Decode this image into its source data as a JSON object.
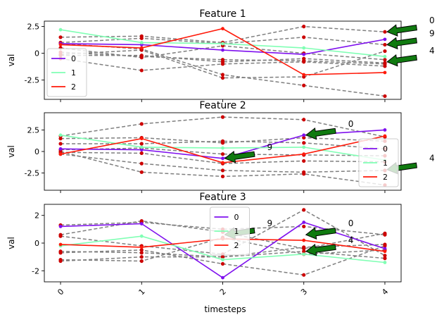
{
  "figure": {
    "xlabel": "timesteps"
  },
  "chart_data": [
    {
      "type": "line",
      "title": "Feature 1",
      "ylabel": "val",
      "x": [
        0,
        1,
        2,
        3,
        4
      ],
      "ylim": [
        -4.3,
        3.0
      ],
      "yticks": [
        -2.5,
        0.0,
        2.5
      ],
      "legend": "lower-left",
      "series": [
        {
          "name": "0",
          "color": "#7f10ee",
          "values": [
            0.9,
            0.8,
            0.3,
            -0.1,
            1.3
          ]
        },
        {
          "name": "1",
          "color": "#80ffb4",
          "values": [
            2.2,
            1.0,
            0.9,
            0.5,
            -0.3
          ]
        },
        {
          "name": "2",
          "color": "#ff1a0a",
          "values": [
            0.8,
            0.5,
            2.3,
            -2.0,
            -1.8
          ]
        }
      ],
      "background": [
        [
          1.5,
          1.6,
          1.0,
          2.5,
          2.0
        ],
        [
          1.0,
          1.4,
          0.9,
          1.5,
          0.8
        ],
        [
          0.5,
          -0.4,
          0.7,
          0.0,
          -0.6
        ],
        [
          0.1,
          -0.3,
          -0.6,
          -0.7,
          -1.0
        ],
        [
          -0.2,
          -0.2,
          -0.8,
          -0.5,
          -0.9
        ],
        [
          -0.5,
          -1.6,
          -1.0,
          -0.8,
          -1.2
        ],
        [
          0.9,
          0.4,
          -2.0,
          -3.0,
          -4.0
        ],
        [
          -0.1,
          0.3,
          -2.3,
          -2.2,
          0.2
        ]
      ],
      "annotations": [
        {
          "label": "0",
          "x": 4,
          "y": 2.0
        },
        {
          "label": "9",
          "x": 4,
          "y": 0.8
        },
        {
          "label": "4",
          "x": 4,
          "y": -0.8
        }
      ]
    },
    {
      "type": "line",
      "title": "Feature 2",
      "ylabel": "val",
      "x": [
        0,
        1,
        2,
        3,
        4
      ],
      "ylim": [
        -4.5,
        4.5
      ],
      "yticks": [
        -2.5,
        0.0,
        2.5
      ],
      "legend": "right",
      "series": [
        {
          "name": "0",
          "color": "#7f10ee",
          "values": [
            0.3,
            0.2,
            -0.8,
            1.9,
            2.5
          ]
        },
        {
          "name": "1",
          "color": "#80ffb4",
          "values": [
            1.9,
            0.5,
            0.4,
            0.5,
            -1.0
          ]
        },
        {
          "name": "2",
          "color": "#ff1a0a",
          "values": [
            -0.3,
            1.5,
            -1.3,
            -0.3,
            1.8
          ]
        }
      ],
      "background": [
        [
          1.8,
          3.2,
          4.0,
          3.7,
          1.7
        ],
        [
          1.5,
          1.6,
          1.0,
          1.6,
          1.2
        ],
        [
          0.9,
          0.9,
          1.2,
          1.0,
          0.3
        ],
        [
          0.2,
          0.4,
          -0.3,
          -0.4,
          -0.5
        ],
        [
          -0.1,
          -0.2,
          -1.4,
          -1.1,
          -1.2
        ],
        [
          -0.3,
          -1.4,
          -2.2,
          -2.4,
          -2.2
        ],
        [
          0.0,
          -2.4,
          -2.9,
          -2.6,
          -3.9
        ]
      ],
      "annotations": [
        {
          "label": "0",
          "x": 3,
          "y": 1.9
        },
        {
          "label": "9",
          "x": 2,
          "y": -0.8
        },
        {
          "label": "4",
          "x": 4,
          "y": -2.1
        }
      ]
    },
    {
      "type": "line",
      "title": "Feature 3",
      "ylabel": "val",
      "x": [
        0,
        1,
        2,
        3,
        4
      ],
      "ylim": [
        -2.8,
        2.8
      ],
      "yticks": [
        -2,
        0,
        2
      ],
      "legend": "top-center",
      "series": [
        {
          "name": "0",
          "color": "#7f10ee",
          "values": [
            1.2,
            1.4,
            -2.5,
            1.5,
            -0.4
          ]
        },
        {
          "name": "1",
          "color": "#80ffb4",
          "values": [
            -0.2,
            0.5,
            -1.2,
            -0.8,
            -1.4
          ]
        },
        {
          "name": "2",
          "color": "#ff1a0a",
          "values": [
            -0.1,
            -0.3,
            0.3,
            0.2,
            -0.6
          ]
        }
      ],
      "background": [
        [
          1.3,
          1.5,
          1.0,
          1.2,
          0.6
        ],
        [
          0.6,
          1.6,
          0.8,
          -0.4,
          0.7
        ],
        [
          0.5,
          -0.2,
          -0.8,
          2.4,
          -0.9
        ],
        [
          -0.6,
          -0.7,
          -1.0,
          -0.3,
          -0.1
        ],
        [
          -0.7,
          -0.5,
          -1.5,
          -2.3,
          -0.2
        ],
        [
          -1.2,
          -1.3,
          0.4,
          -0.8,
          -0.5
        ],
        [
          -1.3,
          -1.0,
          -1.0,
          -0.6,
          -1.1
        ]
      ],
      "annotations": [
        {
          "label": "9",
          "x": 2,
          "y": 0.6
        },
        {
          "label": "0",
          "x": 3,
          "y": 0.6
        },
        {
          "label": "4",
          "x": 3,
          "y": -0.6
        }
      ]
    }
  ]
}
